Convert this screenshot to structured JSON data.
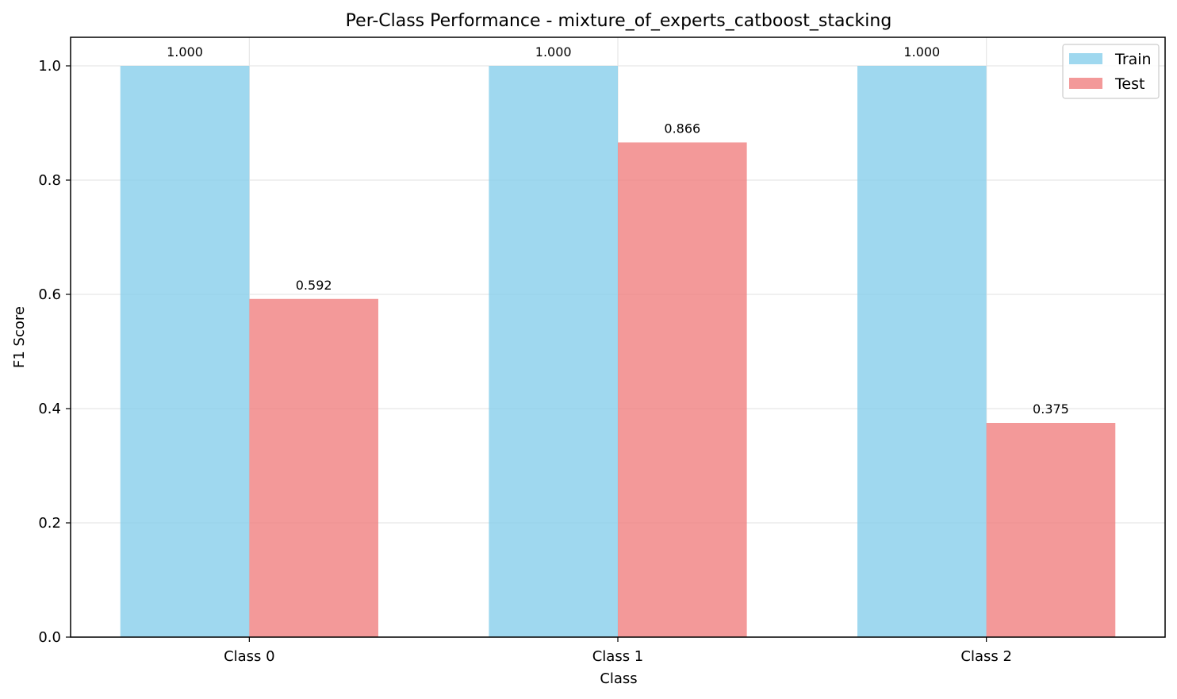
{
  "chart_data": {
    "type": "bar",
    "title": "Per-Class Performance - mixture_of_experts_catboost_stacking",
    "xlabel": "Class",
    "ylabel": "F1 Score",
    "categories": [
      "Class 0",
      "Class 1",
      "Class 2"
    ],
    "series": [
      {
        "name": "Train",
        "values": [
          1.0,
          1.0,
          1.0
        ],
        "color": "#87CEEB",
        "labels": [
          "1.000",
          "1.000",
          "1.000"
        ]
      },
      {
        "name": "Test",
        "values": [
          0.592,
          0.866,
          0.375
        ],
        "color": "#F08080",
        "labels": [
          "0.592",
          "0.866",
          "0.375"
        ]
      }
    ],
    "ylim": [
      0,
      1.05
    ],
    "yticks": [
      0.0,
      0.2,
      0.4,
      0.6,
      0.8,
      1.0
    ],
    "ytick_labels": [
      "0.0",
      "0.2",
      "0.4",
      "0.6",
      "0.8",
      "1.0"
    ],
    "grid": true,
    "legend_position": "top-right"
  }
}
